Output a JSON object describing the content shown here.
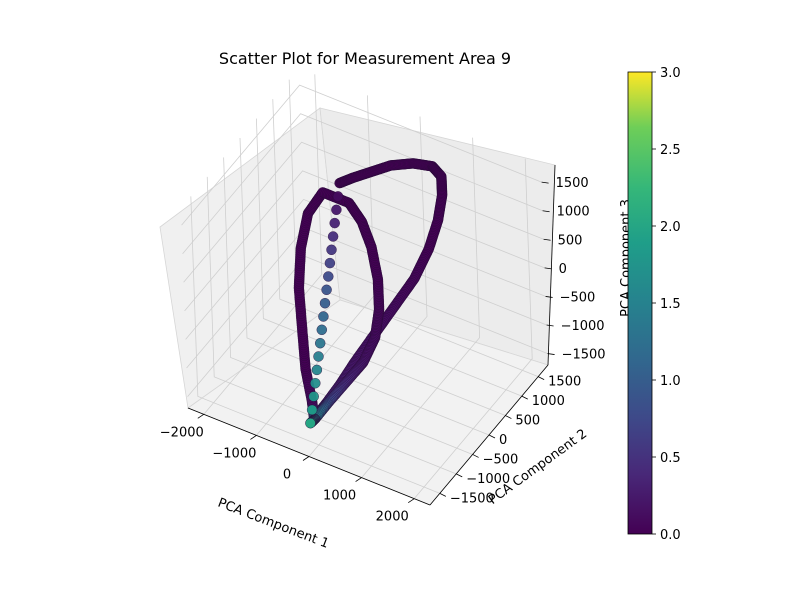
{
  "chart_data": {
    "type": "scatter",
    "projection": "3d",
    "title": "Scatter Plot for Measurement Area 9",
    "xlabel": "PCA Component 1",
    "ylabel": "PCA Component 2",
    "zlabel": "PCA Component 3",
    "xlim": [
      -2300,
      2300
    ],
    "ylim": [
      -1800,
      1800
    ],
    "zlim": [
      -1700,
      1800
    ],
    "x_ticks": [
      -2000,
      -1000,
      0,
      1000,
      2000
    ],
    "x_tick_labels": [
      "−2000",
      "−1000",
      "0",
      "1000",
      "2000"
    ],
    "y_ticks": [
      -1500,
      -1000,
      -500,
      0,
      500,
      1000,
      1500
    ],
    "y_tick_labels": [
      "−1500",
      "−1000",
      "−500",
      "0",
      "500",
      "1000",
      "1500"
    ],
    "z_ticks": [
      -1500,
      -1000,
      -500,
      0,
      500,
      1000,
      1500
    ],
    "z_tick_labels": [
      "−1500",
      "−1000",
      "−500",
      "0",
      "500",
      "1000",
      "1500"
    ],
    "grid": true,
    "colormap": "viridis",
    "colorbar": {
      "range": [
        0,
        3
      ],
      "ticks": [
        0,
        0.5,
        1,
        1.5,
        2,
        2.5,
        3
      ],
      "tick_labels": [
        "0.0",
        "0.5",
        "1.0",
        "1.5",
        "2.0",
        "2.5",
        "3.0"
      ]
    },
    "points": [
      {
        "x": -1200,
        "y": 1200,
        "z": 600,
        "c": 0
      },
      {
        "x": -1000,
        "y": 1300,
        "z": 700,
        "c": 0
      },
      {
        "x": -700,
        "y": 1400,
        "z": 850,
        "c": 0
      },
      {
        "x": -400,
        "y": 1500,
        "z": 1000,
        "c": 0
      },
      {
        "x": 0,
        "y": 1550,
        "z": 1150,
        "c": 0
      },
      {
        "x": 400,
        "y": 1500,
        "z": 1280,
        "c": 0
      },
      {
        "x": 700,
        "y": 1300,
        "z": 1350,
        "c": 0
      },
      {
        "x": 900,
        "y": 1000,
        "z": 1300,
        "c": 0
      },
      {
        "x": 1000,
        "y": 700,
        "z": 1100,
        "c": 0
      },
      {
        "x": 1000,
        "y": 400,
        "z": 800,
        "c": 0
      },
      {
        "x": 900,
        "y": 100,
        "z": 450,
        "c": 0.05
      },
      {
        "x": 700,
        "y": -200,
        "z": 100,
        "c": 0.1
      },
      {
        "x": 500,
        "y": -500,
        "z": -250,
        "c": 0.15
      },
      {
        "x": 300,
        "y": -800,
        "z": -600,
        "c": 0.2
      },
      {
        "x": 150,
        "y": -1050,
        "z": -900,
        "c": 0.3
      },
      {
        "x": 0,
        "y": -1250,
        "z": -1150,
        "c": 0.5
      },
      {
        "x": -100,
        "y": -1350,
        "z": -1300,
        "c": 1.0
      },
      {
        "x": -150,
        "y": -1380,
        "z": -1380,
        "c": 1.8
      },
      {
        "x": -300,
        "y": -1200,
        "z": -1250,
        "c": 0.1
      },
      {
        "x": -600,
        "y": -900,
        "z": -1000,
        "c": 0
      },
      {
        "x": -900,
        "y": -500,
        "z": -700,
        "c": 0
      },
      {
        "x": -1200,
        "y": -100,
        "z": -350,
        "c": 0
      },
      {
        "x": -1400,
        "y": 300,
        "z": 0,
        "c": 0
      },
      {
        "x": -1500,
        "y": 700,
        "z": 300,
        "c": 0
      },
      {
        "x": -1400,
        "y": 1000,
        "z": 500,
        "c": 0
      },
      {
        "x": -900,
        "y": 1000,
        "z": 500,
        "c": 0
      },
      {
        "x": -600,
        "y": 900,
        "z": 350,
        "c": 0
      },
      {
        "x": -300,
        "y": 700,
        "z": 150,
        "c": 0
      },
      {
        "x": 0,
        "y": 400,
        "z": -100,
        "c": 0
      },
      {
        "x": 200,
        "y": 100,
        "z": -350,
        "c": 0.05
      },
      {
        "x": 300,
        "y": -200,
        "z": -600,
        "c": 0.1
      },
      {
        "x": 250,
        "y": -500,
        "z": -850,
        "c": 0.2
      },
      {
        "x": 100,
        "y": -800,
        "z": -1050,
        "c": 0.4
      },
      {
        "x": -50,
        "y": -1100,
        "z": -1250,
        "c": 0.8
      },
      {
        "x": -150,
        "y": -1350,
        "z": -1400,
        "c": 1.6
      },
      {
        "x": -200,
        "y": -1420,
        "z": -1450,
        "c": 2.0
      }
    ]
  }
}
